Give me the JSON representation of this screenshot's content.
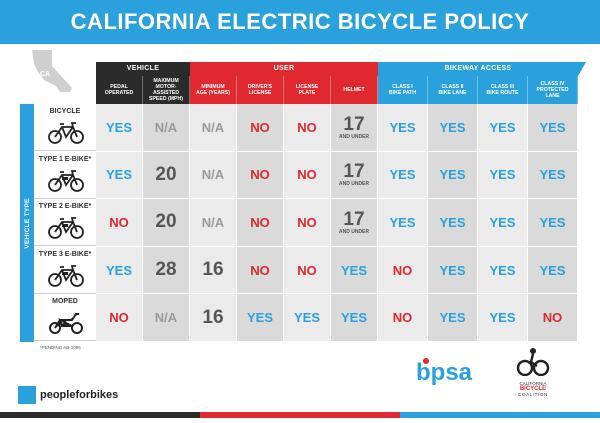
{
  "title": "CALIFORNIA ELECTRIC BICYCLE POLICY",
  "state_label": "CA",
  "groups": {
    "vehicle": "VEHICLE",
    "user": "USER",
    "bikeway": "BIKEWAY ACCESS"
  },
  "columns": [
    [
      "PEDAL",
      "OPERATED"
    ],
    [
      "MAXIMUM",
      "MOTOR-ASSISTED",
      "SPEED (MPH)"
    ],
    [
      "MINIMUM",
      "AGE (YEARS)"
    ],
    [
      "DRIVER'S",
      "LICENSE"
    ],
    [
      "LICENSE",
      "PLATE"
    ],
    [
      "HELMET"
    ],
    [
      "CLASS I",
      "BIKE PATH"
    ],
    [
      "CLASS II",
      "BIKE LANE"
    ],
    [
      "CLASS III",
      "BIKE ROUTE"
    ],
    [
      "CLASS IV",
      "PROTECTED LANE"
    ]
  ],
  "side_label": "VEHICLE TYPE",
  "rows": [
    {
      "name": "BICYCLE",
      "cells": [
        "YES",
        "N/A",
        "N/A",
        "NO",
        "NO",
        "17|AND UNDER",
        "YES",
        "YES",
        "YES",
        "YES"
      ]
    },
    {
      "name": "TYPE 1 E-BIKE*",
      "cells": [
        "YES",
        "20",
        "N/A",
        "NO",
        "NO",
        "17|AND UNDER",
        "YES",
        "YES",
        "YES",
        "YES"
      ]
    },
    {
      "name": "TYPE 2 E-BIKE*",
      "cells": [
        "NO",
        "20",
        "N/A",
        "NO",
        "NO",
        "17|AND UNDER",
        "YES",
        "YES",
        "YES",
        "YES"
      ]
    },
    {
      "name": "TYPE 3 E-BIKE*",
      "cells": [
        "YES",
        "28",
        "16",
        "NO",
        "NO",
        "YES",
        "NO",
        "YES",
        "YES",
        "YES"
      ]
    },
    {
      "name": "MOPED",
      "cells": [
        "NO",
        "N/A",
        "16",
        "YES",
        "YES",
        "YES",
        "NO",
        "YES",
        "YES",
        "NO"
      ]
    }
  ],
  "footnote": "*PENDING AB-1096",
  "logos": {
    "bpsa": "bpsa",
    "cbc_line1": "CALIFORNIA",
    "cbc_line2": "BICYCLE",
    "cbc_line3": "COALITION",
    "peopleforbikes": "peopleforbikes"
  },
  "colors": {
    "blue": "#2aa0dc",
    "red": "#e0282f",
    "dark": "#2b2b2b",
    "gray": "#9a9a9a"
  }
}
